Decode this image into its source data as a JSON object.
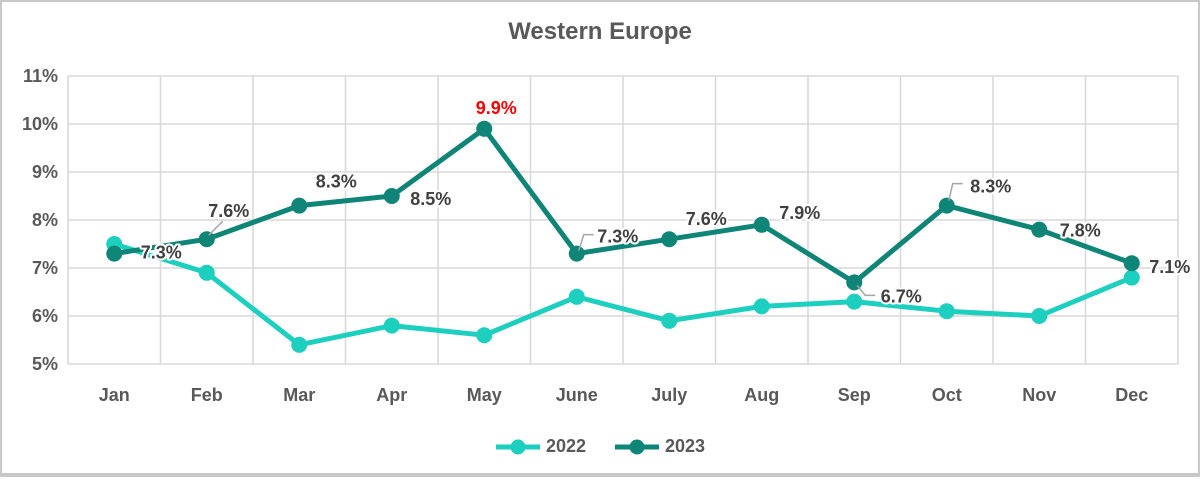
{
  "chart": {
    "background": "#FFFFFF",
    "frame_border_color": "#C8C8C8",
    "grid_color": "#D9D9D9",
    "axis_label_color": "#595959",
    "title_color": "#595959",
    "data_label_color": "#404040",
    "highlight_color": "#FF0000",
    "leader_line_color": "#A6A6A6"
  },
  "chart_data": {
    "type": "line",
    "title": "Western Europe",
    "categories": [
      "Jan",
      "Feb",
      "Mar",
      "Apr",
      "May",
      "June",
      "July",
      "Aug",
      "Sep",
      "Oct",
      "Nov",
      "Dec"
    ],
    "ylim": [
      5,
      11
    ],
    "ytick_labels_top_to_bottom": [
      "11%",
      "10%",
      "9%",
      "8%",
      "7%",
      "6%",
      "5%"
    ],
    "grid": true,
    "legend_position": "bottom",
    "series": [
      {
        "name": "2022",
        "color": "#1DCFBF",
        "values": [
          7.5,
          6.9,
          5.4,
          5.8,
          5.6,
          6.4,
          5.9,
          6.2,
          6.3,
          6.1,
          6.0,
          6.8
        ],
        "data_labels": null
      },
      {
        "name": "2023",
        "color": "#0E8576",
        "values": [
          7.3,
          7.6,
          8.3,
          8.5,
          9.9,
          7.3,
          7.6,
          7.9,
          6.7,
          8.3,
          7.8,
          7.1
        ],
        "data_labels": [
          "7.3%",
          "7.6%",
          "8.3%",
          "8.5%",
          "9.9%",
          "7.3%",
          "7.6%",
          "7.9%",
          "6.7%",
          "8.3%",
          "7.8%",
          "7.1%"
        ],
        "label_colors": [
          "#404040",
          "#404040",
          "#404040",
          "#404040",
          "#FF0000",
          "#404040",
          "#404040",
          "#404040",
          "#404040",
          "#404040",
          "#404040",
          "#404040"
        ],
        "label_offsets": [
          [
            47,
            -1
          ],
          [
            22,
            -28
          ],
          [
            37,
            -24
          ],
          [
            39,
            3
          ],
          [
            12,
            -21
          ],
          [
            41,
            -17
          ],
          [
            37,
            -20
          ],
          [
            38,
            -12
          ],
          [
            47,
            14
          ],
          [
            44,
            -19
          ],
          [
            41,
            1
          ],
          [
            38,
            4
          ]
        ],
        "leader_lines": {
          "1": [
            [
              2,
              -4
            ],
            [
              16,
              -18
            ]
          ],
          "5": [
            [
              2,
              -3
            ],
            [
              7,
              -19
            ],
            [
              17,
              -19
            ]
          ],
          "8": [
            [
              3,
              3
            ],
            [
              11,
              13
            ],
            [
              21,
              13
            ]
          ],
          "9": [
            [
              2,
              -5
            ],
            [
              6,
              -22
            ],
            [
              16,
              -22
            ]
          ]
        }
      }
    ],
    "annotations": [
      {
        "text": "9.9%",
        "note": "May 2023 peak value highlighted in red",
        "color": "#FF0000"
      }
    ]
  }
}
